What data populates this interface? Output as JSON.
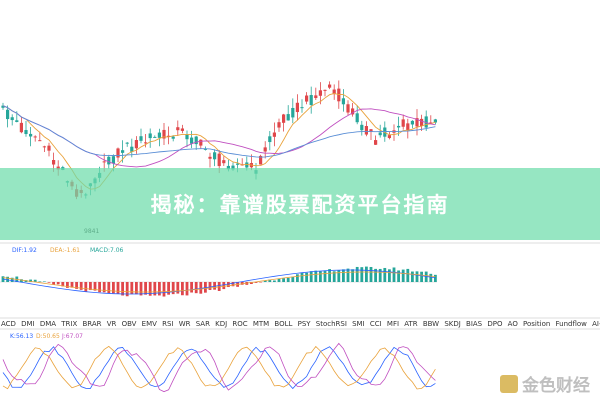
{
  "banner": {
    "title": "揭秘：靠谱股票配资平台指南"
  },
  "price_label": "9841",
  "macd": {
    "dif": "DIF:1.92",
    "dea": "DEA:-1.61",
    "macd": "MACD:7.06"
  },
  "tabs": [
    "ACD",
    "DMI",
    "DMA",
    "TRIX",
    "BRAR",
    "VR",
    "OBV",
    "EMV",
    "RSI",
    "WR",
    "SAR",
    "KDJ",
    "ROC",
    "MTM",
    "BOLL",
    "PSY",
    "StochRSI",
    "SMI",
    "CCI",
    "MFI",
    "ATR",
    "BBW",
    "SKDJ",
    "BIAS",
    "DPO",
    "AO",
    "Position",
    "Fundflow",
    "AI-NetVOL"
  ],
  "kdj": {
    "k": "K:56.13",
    "d": "D:50.65",
    "j": "J:67.07"
  },
  "watermark": "金色财经"
}
